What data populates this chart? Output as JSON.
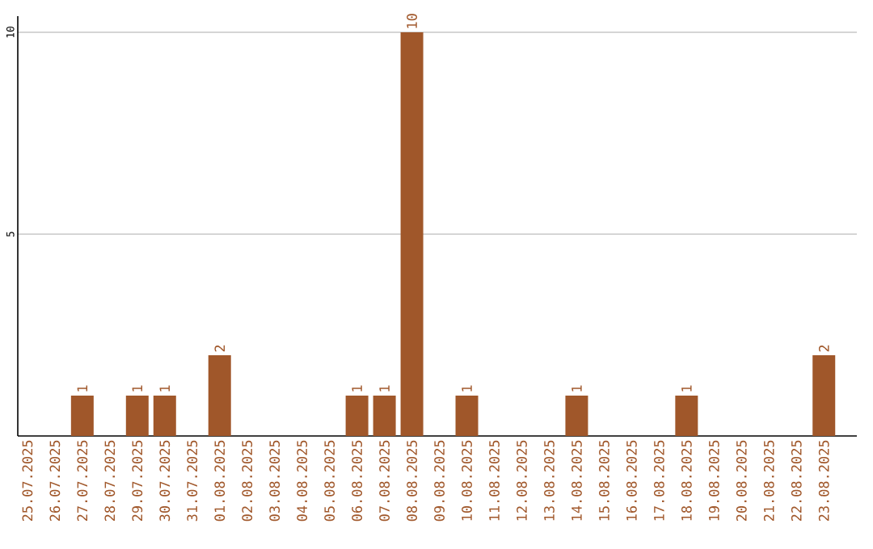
{
  "chart_data": {
    "type": "bar",
    "categories": [
      "25.07.2025",
      "26.07.2025",
      "27.07.2025",
      "28.07.2025",
      "29.07.2025",
      "30.07.2025",
      "31.07.2025",
      "01.08.2025",
      "02.08.2025",
      "03.08.2025",
      "04.08.2025",
      "05.08.2025",
      "06.08.2025",
      "07.08.2025",
      "08.08.2025",
      "09.08.2025",
      "10.08.2025",
      "11.08.2025",
      "12.08.2025",
      "13.08.2025",
      "14.08.2025",
      "15.08.2025",
      "16.08.2025",
      "17.08.2025",
      "18.08.2025",
      "19.08.2025",
      "20.08.2025",
      "21.08.2025",
      "22.08.2025",
      "23.08.2025"
    ],
    "values": [
      0,
      0,
      1,
      0,
      1,
      1,
      0,
      2,
      0,
      0,
      0,
      0,
      1,
      1,
      10,
      0,
      1,
      0,
      0,
      0,
      1,
      0,
      0,
      0,
      1,
      0,
      0,
      0,
      0,
      2
    ],
    "value_labels": [
      null,
      null,
      "1",
      null,
      "1",
      "1",
      null,
      "2",
      null,
      null,
      null,
      null,
      "1",
      "1",
      "10",
      null,
      "1",
      null,
      null,
      null,
      "1",
      null,
      null,
      null,
      "1",
      null,
      null,
      null,
      null,
      "2"
    ],
    "color": "#a0572a",
    "ylim": [
      0,
      10.4
    ],
    "yticks": [
      5,
      10
    ],
    "grid": "y"
  }
}
